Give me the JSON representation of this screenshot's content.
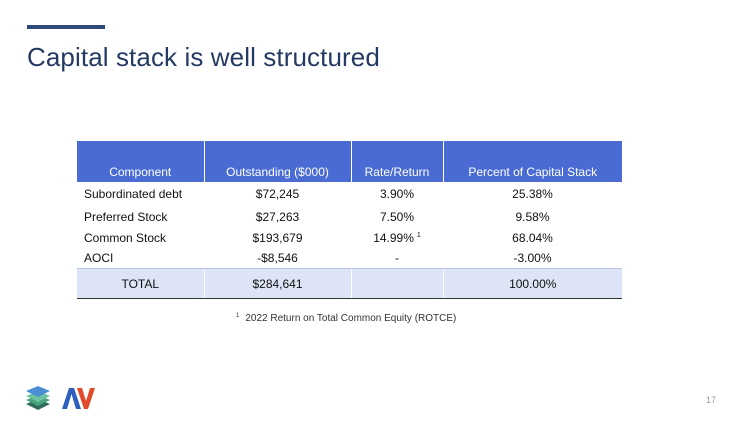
{
  "slide": {
    "title": "Capital stack is well structured",
    "page_number": "17",
    "footnote_marker": "1",
    "footnote_text": "2022 Return on Total Common Equity (ROTCE)"
  },
  "table": {
    "headers": [
      "Component",
      "Outstanding ($000)",
      "Rate/Return",
      "Percent of Capital Stack"
    ],
    "rows": [
      {
        "component": "Subordinated debt",
        "outstanding": "$72,245",
        "rate": "3.90%",
        "rate_sup": "",
        "percent": "25.38%"
      },
      {
        "component": "Preferred Stock",
        "outstanding": "$27,263",
        "rate": "7.50%",
        "rate_sup": "",
        "percent": "9.58%"
      },
      {
        "component": "Common Stock",
        "outstanding": "$193,679",
        "rate": "14.99%",
        "rate_sup": "1",
        "percent": "68.04%"
      },
      {
        "component": "AOCI",
        "outstanding": "-$8,546",
        "rate": "-",
        "rate_sup": "",
        "percent": "-3.00%"
      }
    ],
    "total": {
      "component": "TOTAL",
      "outstanding": "$284,641",
      "rate": "",
      "percent": "100.00%"
    }
  },
  "colors": {
    "accent": "#2e4a7c",
    "title": "#243a63",
    "header_bg": "#4a6bd3",
    "total_bg": "#dce4f5"
  },
  "logos": {
    "left": "layered-stack-logo",
    "right": "av-logo"
  }
}
